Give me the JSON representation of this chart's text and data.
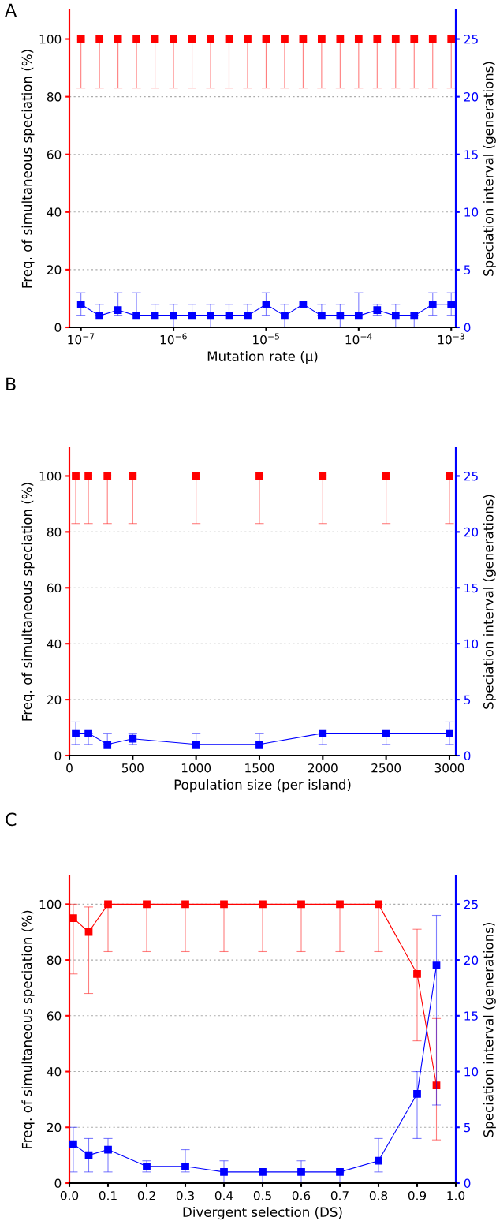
{
  "chart_data": [
    {
      "type": "line",
      "title": "A",
      "xlabel": "Mutation rate (μ)",
      "ylabel": "Freq. of simultaneous speciation (%)",
      "y2label": "Speciation interval (generations)",
      "x": [
        1e-07,
        1.585e-07,
        2.512e-07,
        3.981e-07,
        6.31e-07,
        1e-06,
        1.585e-06,
        2.512e-06,
        3.981e-06,
        6.31e-06,
        1e-05,
        1.585e-05,
        2.512e-05,
        3.981e-05,
        6.31e-05,
        0.0001,
        0.0001585,
        0.0002512,
        0.0003981,
        0.000631,
        0.001
      ],
      "log": "x",
      "xlim": [
        7.5e-08,
        0.00112
      ],
      "xticks": [
        {
          "value": 1e-07,
          "label": "10$^{−7}$"
        },
        {
          "value": 1e-06,
          "label": "10$^{−6}$"
        },
        {
          "value": 1e-05,
          "label": "10$^{−5}$"
        },
        {
          "value": 0.0001,
          "label": "10$^{−4}$"
        },
        {
          "value": 0.001,
          "label": "10$^{−3}$"
        }
      ],
      "ylim": [
        0,
        110
      ],
      "yticks": [
        0,
        20,
        40,
        60,
        80,
        100
      ],
      "y2lim": [
        0,
        27.5
      ],
      "y2ticks": [
        0,
        5,
        10,
        15,
        20,
        25
      ],
      "grid": "y",
      "marker": "square",
      "line_style": "solid",
      "series": [
        {
          "color": "#ff0000",
          "values": [
            100,
            100,
            100,
            100,
            100,
            100,
            100,
            100,
            100,
            100,
            100,
            100,
            100,
            100,
            100,
            100,
            100,
            100,
            100,
            100,
            100
          ],
          "errors": [
            [
              83,
              100
            ],
            [
              83,
              100
            ],
            [
              83,
              100
            ],
            [
              83,
              100
            ],
            [
              83,
              100
            ],
            [
              83,
              100
            ],
            [
              83,
              100
            ],
            [
              83,
              100
            ],
            [
              83,
              100
            ],
            [
              83,
              100
            ],
            [
              83,
              100
            ],
            [
              83,
              100
            ],
            [
              83,
              100
            ],
            [
              83,
              100
            ],
            [
              83,
              100
            ],
            [
              83,
              100
            ],
            [
              83,
              100
            ],
            [
              83,
              100
            ],
            [
              83,
              100
            ],
            [
              83,
              100
            ],
            [
              83,
              100
            ]
          ]
        },
        {
          "color": "#0000ff",
          "axis": "y2",
          "values": [
            2,
            1,
            1.5,
            1,
            1,
            1,
            1,
            1,
            1,
            1,
            2,
            1,
            2,
            1,
            1,
            1,
            1.5,
            1,
            1,
            2,
            2
          ],
          "errors": [
            [
              1,
              3
            ],
            [
              1,
              2
            ],
            [
              1,
              3
            ],
            [
              1,
              3
            ],
            [
              1,
              2
            ],
            [
              0,
              2
            ],
            [
              1,
              2
            ],
            [
              0,
              2
            ],
            [
              1,
              2
            ],
            [
              1,
              2
            ],
            [
              1,
              3
            ],
            [
              0,
              2
            ],
            null,
            [
              1,
              2
            ],
            [
              0,
              2
            ],
            [
              1,
              3
            ],
            [
              1,
              2
            ],
            [
              0,
              2
            ],
            [
              0,
              1
            ],
            [
              1,
              3
            ],
            [
              1,
              3
            ]
          ]
        }
      ]
    },
    {
      "type": "line",
      "title": "B",
      "xlabel": "Population size (per island)",
      "ylabel": "Freq. of simultaneous speciation (%)",
      "y2label": "Speciation interval (generations)",
      "x": [
        50,
        150,
        300,
        500,
        1000,
        1500,
        2000,
        2500,
        3000
      ],
      "xlim": [
        0,
        3050
      ],
      "xticks": [
        0,
        500,
        1000,
        1500,
        2000,
        2500,
        3000
      ],
      "ylim": [
        0,
        110
      ],
      "yticks": [
        0,
        20,
        40,
        60,
        80,
        100
      ],
      "y2lim": [
        0,
        27.5
      ],
      "y2ticks": [
        0,
        5,
        10,
        15,
        20,
        25
      ],
      "grid": "y",
      "marker": "square",
      "line_style": "solid",
      "series": [
        {
          "color": "#ff0000",
          "values": [
            100,
            100,
            100,
            100,
            100,
            100,
            100,
            100,
            100
          ],
          "errors": [
            [
              83,
              100
            ],
            [
              83,
              100
            ],
            [
              83,
              100
            ],
            [
              83,
              100
            ],
            [
              83,
              100
            ],
            [
              83,
              100
            ],
            [
              83,
              100
            ],
            [
              83,
              100
            ],
            [
              83,
              100
            ]
          ]
        },
        {
          "color": "#0000ff",
          "axis": "y2",
          "values": [
            2,
            2,
            1,
            1.5,
            1,
            1,
            2,
            2,
            2
          ],
          "errors": [
            [
              1,
              3
            ],
            [
              1,
              2
            ],
            [
              1,
              2
            ],
            [
              1,
              2
            ],
            [
              1,
              2
            ],
            [
              1,
              2
            ],
            [
              1,
              2
            ],
            [
              1,
              2
            ],
            [
              1,
              3
            ]
          ]
        }
      ]
    },
    {
      "type": "line",
      "title": "C",
      "xlabel": "Divergent selection (DS)",
      "ylabel": "Freq. of simultaneous speciation (%)",
      "y2label": "Speciation interval (generations)",
      "x": [
        0.01,
        0.05,
        0.1,
        0.2,
        0.3,
        0.4,
        0.5,
        0.6,
        0.7,
        0.8,
        0.9,
        0.95
      ],
      "xlim": [
        0,
        1
      ],
      "xticks": [
        {
          "value": 0,
          "label": "0.0"
        },
        0.1,
        0.2,
        0.3,
        0.4,
        0.5,
        0.6,
        0.7,
        0.8,
        0.9,
        {
          "value": 1,
          "label": "1.0"
        }
      ],
      "ylim": [
        0,
        110
      ],
      "yticks": [
        0,
        20,
        40,
        60,
        80,
        100
      ],
      "y2lim": [
        0,
        27.5
      ],
      "y2ticks": [
        0,
        5,
        10,
        15,
        20,
        25
      ],
      "grid": "y",
      "marker": "square",
      "line_style": "solid",
      "series": [
        {
          "color": "#ff0000",
          "values": [
            95,
            90,
            100,
            100,
            100,
            100,
            100,
            100,
            100,
            100,
            75,
            35
          ],
          "errors": [
            [
              75,
              100
            ],
            [
              68,
              99
            ],
            [
              83,
              100
            ],
            [
              83,
              100
            ],
            [
              83,
              100
            ],
            [
              83,
              100
            ],
            [
              83,
              100
            ],
            [
              83,
              100
            ],
            [
              83,
              100
            ],
            [
              83,
              100
            ],
            [
              51,
              91
            ],
            [
              15.5,
              59
            ]
          ]
        },
        {
          "color": "#0000ff",
          "axis": "y2",
          "values": [
            3.5,
            2.5,
            3,
            1.5,
            1.5,
            1,
            1,
            1,
            1,
            2,
            8,
            19.5
          ],
          "errors": [
            [
              1,
              5
            ],
            [
              1,
              4
            ],
            [
              1,
              4
            ],
            [
              1,
              2
            ],
            [
              1,
              3
            ],
            [
              0,
              2
            ],
            [
              0,
              1
            ],
            [
              0,
              2
            ],
            [
              0,
              1
            ],
            [
              1,
              4
            ],
            [
              4,
              10
            ],
            [
              7,
              24
            ]
          ]
        }
      ]
    }
  ]
}
